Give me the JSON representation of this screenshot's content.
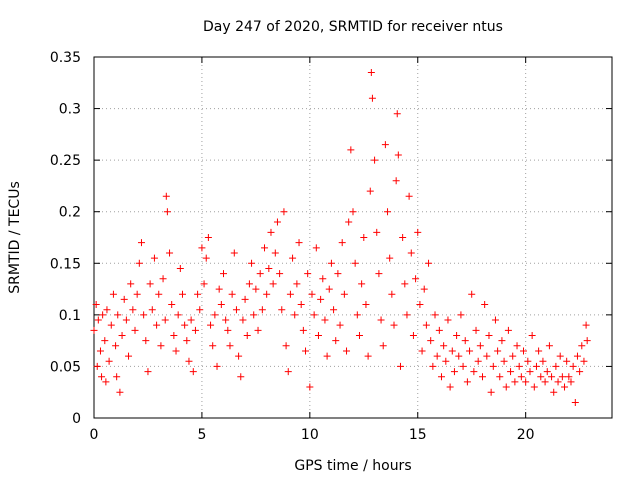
{
  "chart_data": {
    "type": "scatter",
    "title": "Day 247 of 2020, SRMTID for receiver ntus",
    "xlabel": "GPS time / hours",
    "ylabel": "SRMTID / TECUs",
    "xlim": [
      0,
      24
    ],
    "ylim": [
      0,
      0.35
    ],
    "grid": true,
    "x_ticks": [
      0,
      5,
      10,
      15,
      20
    ],
    "x_tick_labels": [
      "0",
      "5",
      "10",
      "15",
      "20"
    ],
    "y_ticks": [
      0,
      0.05,
      0.1,
      0.15,
      0.2,
      0.25,
      0.3,
      0.35
    ],
    "y_tick_labels": [
      "0",
      "0.05",
      "0.1",
      "0.15",
      "0.2",
      "0.25",
      "0.3",
      "0.35"
    ],
    "marker": "+",
    "color": "#ff0000",
    "series": [
      {
        "name": "SRMTID",
        "points": [
          [
            0.0,
            0.085
          ],
          [
            0.1,
            0.11
          ],
          [
            0.15,
            0.05
          ],
          [
            0.2,
            0.095
          ],
          [
            0.3,
            0.065
          ],
          [
            0.35,
            0.04
          ],
          [
            0.4,
            0.1
          ],
          [
            0.5,
            0.075
          ],
          [
            0.55,
            0.035
          ],
          [
            0.6,
            0.105
          ],
          [
            0.7,
            0.055
          ],
          [
            0.8,
            0.09
          ],
          [
            0.9,
            0.12
          ],
          [
            1.0,
            0.07
          ],
          [
            1.05,
            0.04
          ],
          [
            1.1,
            0.1
          ],
          [
            1.2,
            0.025
          ],
          [
            1.3,
            0.08
          ],
          [
            1.4,
            0.115
          ],
          [
            1.5,
            0.095
          ],
          [
            1.6,
            0.06
          ],
          [
            1.7,
            0.13
          ],
          [
            1.8,
            0.105
          ],
          [
            1.9,
            0.085
          ],
          [
            2.0,
            0.12
          ],
          [
            2.1,
            0.15
          ],
          [
            2.2,
            0.17
          ],
          [
            2.3,
            0.1
          ],
          [
            2.4,
            0.075
          ],
          [
            2.5,
            0.045
          ],
          [
            2.6,
            0.13
          ],
          [
            2.7,
            0.105
          ],
          [
            2.8,
            0.155
          ],
          [
            2.9,
            0.09
          ],
          [
            3.0,
            0.12
          ],
          [
            3.1,
            0.07
          ],
          [
            3.2,
            0.135
          ],
          [
            3.3,
            0.095
          ],
          [
            3.35,
            0.215
          ],
          [
            3.4,
            0.2
          ],
          [
            3.5,
            0.16
          ],
          [
            3.6,
            0.11
          ],
          [
            3.7,
            0.08
          ],
          [
            3.8,
            0.065
          ],
          [
            3.9,
            0.1
          ],
          [
            4.0,
            0.145
          ],
          [
            4.1,
            0.12
          ],
          [
            4.2,
            0.09
          ],
          [
            4.3,
            0.075
          ],
          [
            4.4,
            0.055
          ],
          [
            4.5,
            0.095
          ],
          [
            4.6,
            0.045
          ],
          [
            4.7,
            0.085
          ],
          [
            4.8,
            0.12
          ],
          [
            4.9,
            0.105
          ],
          [
            5.0,
            0.165
          ],
          [
            5.1,
            0.13
          ],
          [
            5.2,
            0.155
          ],
          [
            5.3,
            0.175
          ],
          [
            5.4,
            0.09
          ],
          [
            5.5,
            0.07
          ],
          [
            5.6,
            0.1
          ],
          [
            5.7,
            0.05
          ],
          [
            5.8,
            0.125
          ],
          [
            5.9,
            0.11
          ],
          [
            6.0,
            0.14
          ],
          [
            6.1,
            0.095
          ],
          [
            6.2,
            0.085
          ],
          [
            6.3,
            0.07
          ],
          [
            6.4,
            0.12
          ],
          [
            6.5,
            0.16
          ],
          [
            6.6,
            0.105
          ],
          [
            6.7,
            0.06
          ],
          [
            6.8,
            0.04
          ],
          [
            6.9,
            0.095
          ],
          [
            7.0,
            0.115
          ],
          [
            7.1,
            0.08
          ],
          [
            7.2,
            0.13
          ],
          [
            7.3,
            0.15
          ],
          [
            7.4,
            0.1
          ],
          [
            7.5,
            0.125
          ],
          [
            7.6,
            0.085
          ],
          [
            7.7,
            0.14
          ],
          [
            7.8,
            0.105
          ],
          [
            7.9,
            0.165
          ],
          [
            8.0,
            0.12
          ],
          [
            8.1,
            0.145
          ],
          [
            8.2,
            0.18
          ],
          [
            8.3,
            0.13
          ],
          [
            8.4,
            0.16
          ],
          [
            8.5,
            0.19
          ],
          [
            8.6,
            0.14
          ],
          [
            8.7,
            0.105
          ],
          [
            8.8,
            0.2
          ],
          [
            8.9,
            0.07
          ],
          [
            9.0,
            0.045
          ],
          [
            9.1,
            0.12
          ],
          [
            9.2,
            0.155
          ],
          [
            9.3,
            0.1
          ],
          [
            9.4,
            0.13
          ],
          [
            9.5,
            0.17
          ],
          [
            9.6,
            0.11
          ],
          [
            9.7,
            0.085
          ],
          [
            9.8,
            0.065
          ],
          [
            9.9,
            0.14
          ],
          [
            10.0,
            0.03
          ],
          [
            10.1,
            0.12
          ],
          [
            10.2,
            0.1
          ],
          [
            10.3,
            0.165
          ],
          [
            10.4,
            0.08
          ],
          [
            10.5,
            0.115
          ],
          [
            10.6,
            0.135
          ],
          [
            10.7,
            0.095
          ],
          [
            10.8,
            0.06
          ],
          [
            10.9,
            0.125
          ],
          [
            11.0,
            0.15
          ],
          [
            11.1,
            0.105
          ],
          [
            11.2,
            0.075
          ],
          [
            11.3,
            0.14
          ],
          [
            11.4,
            0.09
          ],
          [
            11.5,
            0.17
          ],
          [
            11.6,
            0.12
          ],
          [
            11.7,
            0.065
          ],
          [
            11.8,
            0.19
          ],
          [
            11.9,
            0.26
          ],
          [
            12.0,
            0.2
          ],
          [
            12.1,
            0.15
          ],
          [
            12.2,
            0.1
          ],
          [
            12.3,
            0.08
          ],
          [
            12.4,
            0.13
          ],
          [
            12.5,
            0.175
          ],
          [
            12.6,
            0.11
          ],
          [
            12.7,
            0.06
          ],
          [
            12.8,
            0.22
          ],
          [
            12.85,
            0.335
          ],
          [
            12.9,
            0.31
          ],
          [
            13.0,
            0.25
          ],
          [
            13.1,
            0.18
          ],
          [
            13.2,
            0.14
          ],
          [
            13.3,
            0.095
          ],
          [
            13.4,
            0.07
          ],
          [
            13.5,
            0.265
          ],
          [
            13.6,
            0.2
          ],
          [
            13.7,
            0.155
          ],
          [
            13.8,
            0.12
          ],
          [
            13.9,
            0.09
          ],
          [
            14.0,
            0.23
          ],
          [
            14.05,
            0.295
          ],
          [
            14.1,
            0.255
          ],
          [
            14.2,
            0.05
          ],
          [
            14.3,
            0.175
          ],
          [
            14.4,
            0.13
          ],
          [
            14.5,
            0.1
          ],
          [
            14.6,
            0.215
          ],
          [
            14.7,
            0.16
          ],
          [
            14.8,
            0.08
          ],
          [
            14.9,
            0.135
          ],
          [
            15.0,
            0.18
          ],
          [
            15.1,
            0.11
          ],
          [
            15.2,
            0.065
          ],
          [
            15.3,
            0.125
          ],
          [
            15.4,
            0.09
          ],
          [
            15.5,
            0.15
          ],
          [
            15.6,
            0.075
          ],
          [
            15.7,
            0.05
          ],
          [
            15.8,
            0.1
          ],
          [
            15.9,
            0.06
          ],
          [
            16.0,
            0.085
          ],
          [
            16.1,
            0.04
          ],
          [
            16.2,
            0.07
          ],
          [
            16.3,
            0.055
          ],
          [
            16.4,
            0.095
          ],
          [
            16.5,
            0.03
          ],
          [
            16.6,
            0.065
          ],
          [
            16.7,
            0.045
          ],
          [
            16.8,
            0.08
          ],
          [
            16.9,
            0.06
          ],
          [
            17.0,
            0.1
          ],
          [
            17.1,
            0.05
          ],
          [
            17.2,
            0.075
          ],
          [
            17.3,
            0.035
          ],
          [
            17.4,
            0.065
          ],
          [
            17.5,
            0.12
          ],
          [
            17.6,
            0.045
          ],
          [
            17.7,
            0.085
          ],
          [
            17.8,
            0.055
          ],
          [
            17.9,
            0.07
          ],
          [
            18.0,
            0.04
          ],
          [
            18.1,
            0.11
          ],
          [
            18.2,
            0.06
          ],
          [
            18.3,
            0.08
          ],
          [
            18.4,
            0.025
          ],
          [
            18.5,
            0.05
          ],
          [
            18.6,
            0.095
          ],
          [
            18.7,
            0.065
          ],
          [
            18.8,
            0.04
          ],
          [
            18.9,
            0.075
          ],
          [
            19.0,
            0.055
          ],
          [
            19.1,
            0.03
          ],
          [
            19.2,
            0.085
          ],
          [
            19.3,
            0.045
          ],
          [
            19.4,
            0.06
          ],
          [
            19.5,
            0.035
          ],
          [
            19.6,
            0.07
          ],
          [
            19.7,
            0.05
          ],
          [
            19.8,
            0.04
          ],
          [
            19.9,
            0.065
          ],
          [
            20.0,
            0.035
          ],
          [
            20.1,
            0.055
          ],
          [
            20.2,
            0.045
          ],
          [
            20.3,
            0.08
          ],
          [
            20.4,
            0.03
          ],
          [
            20.5,
            0.05
          ],
          [
            20.6,
            0.065
          ],
          [
            20.7,
            0.04
          ],
          [
            20.8,
            0.055
          ],
          [
            20.9,
            0.035
          ],
          [
            21.0,
            0.045
          ],
          [
            21.1,
            0.07
          ],
          [
            21.2,
            0.04
          ],
          [
            21.3,
            0.025
          ],
          [
            21.4,
            0.05
          ],
          [
            21.5,
            0.035
          ],
          [
            21.6,
            0.06
          ],
          [
            21.7,
            0.04
          ],
          [
            21.8,
            0.03
          ],
          [
            21.9,
            0.055
          ],
          [
            22.0,
            0.04
          ],
          [
            22.1,
            0.035
          ],
          [
            22.2,
            0.05
          ],
          [
            22.3,
            0.015
          ],
          [
            22.4,
            0.06
          ],
          [
            22.5,
            0.045
          ],
          [
            22.6,
            0.07
          ],
          [
            22.7,
            0.055
          ],
          [
            22.8,
            0.09
          ],
          [
            22.85,
            0.075
          ]
        ]
      }
    ]
  }
}
